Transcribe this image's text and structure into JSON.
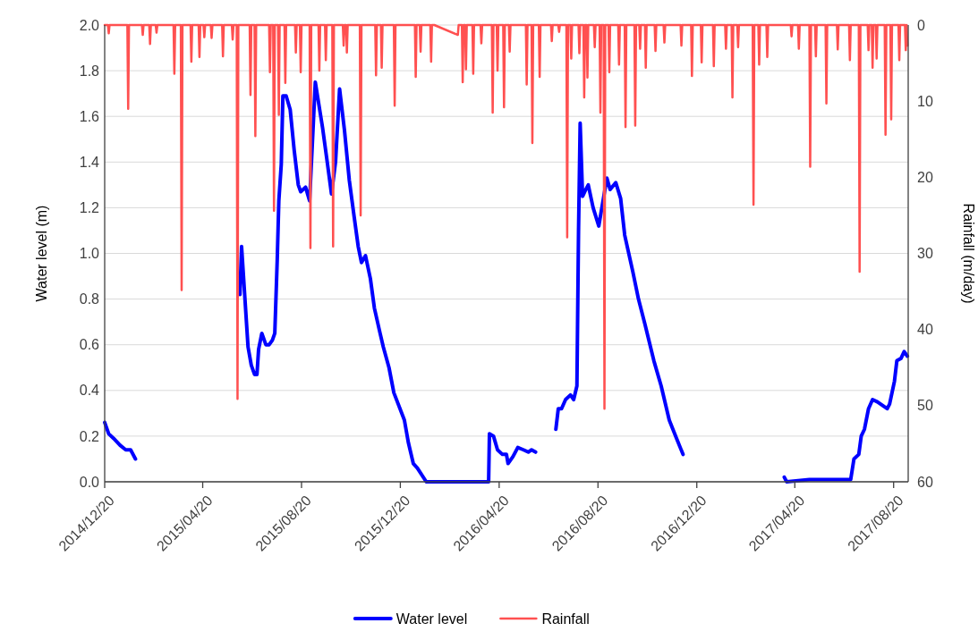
{
  "chart_data": {
    "type": "line",
    "ylabel": "Water level (m)",
    "y2label": "Rainfall (m/day)",
    "xlim": [
      "2014-12-20",
      "2017-09-07"
    ],
    "xticks": [
      {
        "value": "2014-12-20",
        "label": "2014/12/20"
      },
      {
        "value": "2015-04-20",
        "label": "2015/04/20"
      },
      {
        "value": "2015-08-20",
        "label": "2015/08/20"
      },
      {
        "value": "2015-12-20",
        "label": "2015/12/20"
      },
      {
        "value": "2016-04-20",
        "label": "2016/04/20"
      },
      {
        "value": "2016-08-20",
        "label": "2016/08/20"
      },
      {
        "value": "2016-12-20",
        "label": "2016/12/20"
      },
      {
        "value": "2017-04-20",
        "label": "2017/04/20"
      },
      {
        "value": "2017-08-20",
        "label": "2017/08/20"
      }
    ],
    "ylim": [
      0,
      2
    ],
    "yticks": [
      {
        "value": 0,
        "label": "0.0"
      },
      {
        "value": 0.2,
        "label": "0.2"
      },
      {
        "value": 0.4,
        "label": "0.4"
      },
      {
        "value": 0.6,
        "label": "0.6"
      },
      {
        "value": 0.8,
        "label": "0.8"
      },
      {
        "value": 1,
        "label": "1.0"
      },
      {
        "value": 1.2,
        "label": "1.2"
      },
      {
        "value": 1.4,
        "label": "1.4"
      },
      {
        "value": 1.6,
        "label": "1.6"
      },
      {
        "value": 1.8,
        "label": "1.8"
      },
      {
        "value": 2,
        "label": "2.0"
      }
    ],
    "y2lim": [
      60,
      0
    ],
    "y2ticks": [
      0,
      10,
      20,
      30,
      40,
      50,
      60
    ],
    "grid": "y",
    "legend": "bottom",
    "marker": "none",
    "line_style": "solid",
    "series": [
      {
        "name": "Water level",
        "color": "#0000ff",
        "x": [
          "2014-12-20",
          "2014-12-25",
          "2014-12-31",
          "2015-01-08",
          "2015-01-15",
          "2015-01-21",
          "2015-01-27",
          "2015-02-15",
          "2015-06-05",
          "2015-06-07",
          "2015-06-15",
          "2015-06-19",
          "2015-06-23",
          "2015-06-26",
          "2015-06-28",
          "2015-07-02",
          "2015-07-07",
          "2015-07-11",
          "2015-07-15",
          "2015-07-18",
          "2015-07-21",
          "2015-07-23",
          "2015-07-26",
          "2015-07-28",
          "2015-08-01",
          "2015-08-06",
          "2015-08-11",
          "2015-08-16",
          "2015-08-19",
          "2015-08-25",
          "2015-08-30",
          "2015-09-06",
          "2015-09-15",
          "2015-09-20",
          "2015-09-26",
          "2015-10-01",
          "2015-10-06",
          "2015-10-12",
          "2015-10-18",
          "2015-10-24",
          "2015-10-29",
          "2015-11-02",
          "2015-11-07",
          "2015-11-13",
          "2015-11-18",
          "2015-11-25",
          "2015-11-29",
          "2015-12-06",
          "2015-12-12",
          "2015-12-25",
          "2015-12-30",
          "2016-01-05",
          "2016-01-10",
          "2016-01-21",
          "2016-04-07",
          "2016-04-08",
          "2016-04-13",
          "2016-04-18",
          "2016-04-24",
          "2016-04-29",
          "2016-05-01",
          "2016-05-07",
          "2016-05-13",
          "2016-05-20",
          "2016-05-26",
          "2016-05-30",
          "2016-06-04",
          "2016-06-20",
          "2016-06-29",
          "2016-07-02",
          "2016-07-06",
          "2016-07-11",
          "2016-07-17",
          "2016-07-21",
          "2016-07-25",
          "2016-07-27",
          "2016-07-29",
          "2016-08-01",
          "2016-08-05",
          "2016-08-08",
          "2016-08-14",
          "2016-08-21",
          "2016-08-31",
          "2016-09-04",
          "2016-09-11",
          "2016-09-17",
          "2016-09-22",
          "2016-10-02",
          "2016-10-09",
          "2016-10-17",
          "2016-10-28",
          "2016-11-06",
          "2016-11-16",
          "2016-11-25",
          "2016-12-03",
          "2017-01-01",
          "2017-04-07",
          "2017-04-10",
          "2017-05-08",
          "2017-06-03",
          "2017-06-28",
          "2017-07-02",
          "2017-07-08",
          "2017-07-11",
          "2017-07-15",
          "2017-07-20",
          "2017-07-25",
          "2017-07-31",
          "2017-08-12",
          "2017-08-15",
          "2017-08-21",
          "2017-08-24",
          "2017-08-29",
          "2017-09-02",
          "2017-09-06"
        ],
        "values": [
          0.26,
          0.21,
          0.19,
          0.16,
          0.14,
          0.14,
          0.1,
          null,
          0.82,
          1.03,
          0.59,
          0.51,
          0.47,
          0.47,
          0.58,
          0.65,
          0.6,
          0.6,
          0.62,
          0.65,
          0.97,
          1.23,
          1.39,
          1.69,
          1.69,
          1.63,
          1.45,
          1.3,
          1.27,
          1.29,
          1.23,
          1.75,
          1.55,
          1.42,
          1.26,
          1.4,
          1.72,
          1.54,
          1.32,
          1.16,
          1.03,
          0.96,
          0.99,
          0.89,
          0.76,
          0.65,
          0.59,
          0.5,
          0.39,
          0.27,
          0.17,
          0.08,
          0.06,
          0,
          0,
          0.21,
          0.2,
          0.14,
          0.12,
          0.12,
          0.08,
          0.11,
          0.15,
          0.14,
          0.13,
          0.14,
          0.13,
          null,
          0.23,
          0.32,
          0.32,
          0.36,
          0.38,
          0.36,
          0.42,
          1.1,
          1.57,
          1.25,
          1.28,
          1.3,
          1.2,
          1.12,
          1.33,
          1.28,
          1.31,
          1.24,
          1.08,
          0.92,
          0.8,
          0.69,
          0.53,
          0.42,
          0.27,
          0.19,
          0.12,
          null,
          0.02,
          0,
          0.01,
          0.01,
          0.01,
          0.1,
          0.12,
          0.2,
          0.23,
          0.32,
          0.36,
          0.35,
          0.32,
          0.34,
          0.44,
          0.53,
          0.54,
          0.57,
          0.55
        ]
      },
      {
        "name": "Rainfall",
        "color": "#ff5050",
        "axis": "y2",
        "x": [
          "2014-12-20",
          "2014-12-24",
          "2014-12-25",
          "2014-12-26",
          "2015-01-17",
          "2015-01-18",
          "2015-01-19",
          "2015-02-04",
          "2015-02-05",
          "2015-02-06",
          "2015-02-13",
          "2015-02-14",
          "2015-02-15",
          "2015-02-21",
          "2015-02-22",
          "2015-02-23",
          "2015-03-15",
          "2015-03-16",
          "2015-03-17",
          "2015-03-24",
          "2015-03-25",
          "2015-03-26",
          "2015-04-05",
          "2015-04-06",
          "2015-04-07",
          "2015-04-15",
          "2015-04-16",
          "2015-04-17",
          "2015-04-21",
          "2015-04-22",
          "2015-04-23",
          "2015-04-30",
          "2015-05-01",
          "2015-05-02",
          "2015-05-14",
          "2015-05-15",
          "2015-05-16",
          "2015-05-26",
          "2015-05-27",
          "2015-05-28",
          "2015-06-01",
          "2015-06-02",
          "2015-06-03",
          "2015-06-17",
          "2015-06-18",
          "2015-06-19",
          "2015-06-23",
          "2015-06-24",
          "2015-06-25",
          "2015-07-11",
          "2015-07-12",
          "2015-07-13",
          "2015-07-16",
          "2015-07-17",
          "2015-07-18",
          "2015-07-22",
          "2015-07-23",
          "2015-07-24",
          "2015-07-30",
          "2015-07-31",
          "2015-08-01",
          "2015-08-12",
          "2015-08-13",
          "2015-08-14",
          "2015-08-18",
          "2015-08-19",
          "2015-08-20",
          "2015-08-30",
          "2015-08-31",
          "2015-09-01",
          "2015-09-10",
          "2015-09-11",
          "2015-09-12",
          "2015-09-18",
          "2015-09-19",
          "2015-09-20",
          "2015-09-27",
          "2015-09-28",
          "2015-09-29",
          "2015-10-10",
          "2015-10-11",
          "2015-10-12",
          "2015-10-14",
          "2015-10-15",
          "2015-10-16",
          "2015-10-31",
          "2015-11-01",
          "2015-11-02",
          "2015-11-19",
          "2015-11-20",
          "2015-11-21",
          "2015-11-26",
          "2015-11-27",
          "2015-11-28",
          "2015-12-12",
          "2015-12-13",
          "2015-12-14",
          "2016-01-07",
          "2016-01-08",
          "2016-01-09",
          "2016-01-13",
          "2016-01-14",
          "2016-01-15",
          "2016-01-26",
          "2016-01-27",
          "2016-01-28",
          "2016-01-31",
          "2016-02-29",
          "2016-03-01",
          "2016-03-05",
          "2016-03-06",
          "2016-03-07",
          "2016-03-09",
          "2016-03-10",
          "2016-03-11",
          "2016-03-18",
          "2016-03-19",
          "2016-03-20",
          "2016-03-28",
          "2016-03-29",
          "2016-03-30",
          "2016-04-11",
          "2016-04-12",
          "2016-04-13",
          "2016-04-17",
          "2016-04-18",
          "2016-04-19",
          "2016-04-25",
          "2016-04-26",
          "2016-04-27",
          "2016-05-02",
          "2016-05-03",
          "2016-05-04",
          "2016-05-23",
          "2016-05-24",
          "2016-05-25",
          "2016-05-30",
          "2016-05-31",
          "2016-06-01",
          "2016-06-08",
          "2016-06-09",
          "2016-06-10",
          "2016-06-23",
          "2016-06-24",
          "2016-06-25",
          "2016-07-02",
          "2016-07-03",
          "2016-07-04",
          "2016-07-12",
          "2016-07-13",
          "2016-07-14",
          "2016-07-17",
          "2016-07-18",
          "2016-07-19",
          "2016-07-27",
          "2016-07-28",
          "2016-07-29",
          "2016-08-02",
          "2016-08-03",
          "2016-08-04",
          "2016-08-06",
          "2016-08-07",
          "2016-08-08",
          "2016-08-15",
          "2016-08-16",
          "2016-08-17",
          "2016-08-22",
          "2016-08-23",
          "2016-08-24",
          "2016-08-27",
          "2016-08-28",
          "2016-08-29",
          "2016-09-02",
          "2016-09-03",
          "2016-09-04",
          "2016-09-14",
          "2016-09-15",
          "2016-09-16",
          "2016-09-22",
          "2016-09-23",
          "2016-09-24",
          "2016-10-04",
          "2016-10-05",
          "2016-10-06",
          "2016-10-10",
          "2016-10-11",
          "2016-10-12",
          "2016-10-17",
          "2016-10-18",
          "2016-10-19",
          "2016-10-29",
          "2016-10-30",
          "2016-10-31",
          "2016-11-09",
          "2016-11-10",
          "2016-11-11",
          "2016-11-30",
          "2016-12-01",
          "2016-12-02",
          "2016-12-13",
          "2016-12-14",
          "2016-12-15",
          "2016-12-25",
          "2016-12-26",
          "2016-12-27",
          "2017-01-09",
          "2017-01-10",
          "2017-01-11",
          "2017-01-24",
          "2017-01-25",
          "2017-01-26",
          "2017-02-01",
          "2017-02-02",
          "2017-02-03",
          "2017-02-08",
          "2017-02-09",
          "2017-02-10",
          "2017-02-27",
          "2017-02-28",
          "2017-03-01",
          "2017-03-06",
          "2017-03-07",
          "2017-03-08",
          "2017-03-16",
          "2017-03-17",
          "2017-03-18",
          "2017-04-15",
          "2017-04-16",
          "2017-04-17",
          "2017-04-24",
          "2017-04-25",
          "2017-04-26",
          "2017-05-08",
          "2017-05-09",
          "2017-05-10",
          "2017-05-15",
          "2017-05-16",
          "2017-05-17",
          "2017-05-28",
          "2017-05-29",
          "2017-05-30",
          "2017-06-11",
          "2017-06-12",
          "2017-06-13",
          "2017-06-26",
          "2017-06-27",
          "2017-06-28",
          "2017-07-08",
          "2017-07-09",
          "2017-07-10",
          "2017-07-19",
          "2017-07-20",
          "2017-07-21",
          "2017-07-24",
          "2017-07-25",
          "2017-07-26",
          "2017-07-29",
          "2017-07-30",
          "2017-07-31",
          "2017-08-09",
          "2017-08-10",
          "2017-08-11",
          "2017-08-16",
          "2017-08-17",
          "2017-08-18",
          "2017-08-26",
          "2017-08-27",
          "2017-08-28",
          "2017-09-03",
          "2017-09-04",
          "2017-09-05",
          "2017-09-06"
        ],
        "values": [
          0,
          0,
          1.1,
          0,
          0,
          11.0,
          0,
          0,
          1.3,
          0,
          0,
          2.5,
          0,
          0,
          1.0,
          0,
          0,
          6.4,
          0,
          0,
          34.8,
          0,
          0,
          4.8,
          0,
          0,
          4.2,
          0,
          0,
          1.6,
          0,
          0,
          1.7,
          0,
          0,
          4.1,
          0,
          0,
          1.9,
          0,
          0,
          49.1,
          0,
          0,
          9.2,
          0,
          0,
          14.6,
          0,
          0,
          6.2,
          0,
          0,
          24.4,
          0,
          0,
          11.8,
          0,
          0,
          7.6,
          0,
          0,
          3.6,
          0,
          0,
          6.2,
          0,
          0,
          29.3,
          0,
          0,
          6.0,
          0,
          0,
          4.6,
          0,
          0,
          29.1,
          0,
          0,
          2.7,
          0,
          0,
          3.6,
          0,
          0,
          25.0,
          0,
          0,
          6.6,
          0,
          0,
          5.6,
          0,
          0,
          10.6,
          0,
          0,
          6.8,
          0,
          0,
          3.5,
          0,
          0,
          4.8,
          0,
          0,
          1.3,
          0,
          0,
          7.5,
          0,
          0,
          5.8,
          0,
          0,
          6.4,
          0,
          0,
          2.4,
          0,
          0,
          11.5,
          0,
          0,
          6.0,
          0,
          0,
          10.8,
          0,
          0,
          3.5,
          0,
          0,
          7.8,
          0,
          0,
          15.5,
          0,
          0,
          6.8,
          0,
          0,
          2.1,
          0,
          0,
          0.9,
          0,
          0,
          27.9,
          0,
          0,
          4.4,
          0,
          0,
          3.7,
          0,
          0,
          9.5,
          0,
          0,
          6.9,
          0,
          0,
          2.9,
          0,
          0,
          11.5,
          0,
          0,
          50.4,
          0,
          0,
          6.2,
          0,
          0,
          5.2,
          0,
          0,
          13.4,
          0,
          0,
          13.2,
          0,
          0,
          3.1,
          0,
          0,
          5.6,
          0,
          0,
          3.4,
          0,
          0,
          2.3,
          0,
          0,
          2.7,
          0,
          0,
          6.7,
          0,
          0,
          4.9,
          0,
          0,
          5.4,
          0,
          0,
          3.1,
          0,
          0,
          9.5,
          0,
          0,
          2.9,
          0,
          0,
          23.6,
          0,
          0,
          5.2,
          0,
          0,
          4.2,
          0,
          0,
          1.5,
          0,
          0,
          3.1,
          0,
          0,
          18.6,
          0,
          0,
          4.1,
          0,
          0,
          10.3,
          0,
          0,
          3.2,
          0,
          0,
          4.6,
          0,
          0,
          32.4,
          0,
          0,
          3.3,
          0,
          0,
          5.6,
          0,
          0,
          4.4,
          0,
          0,
          14.4,
          0,
          0,
          12.4,
          0,
          0,
          4.6,
          0,
          0,
          3.3,
          0,
          2.7
        ]
      }
    ]
  }
}
